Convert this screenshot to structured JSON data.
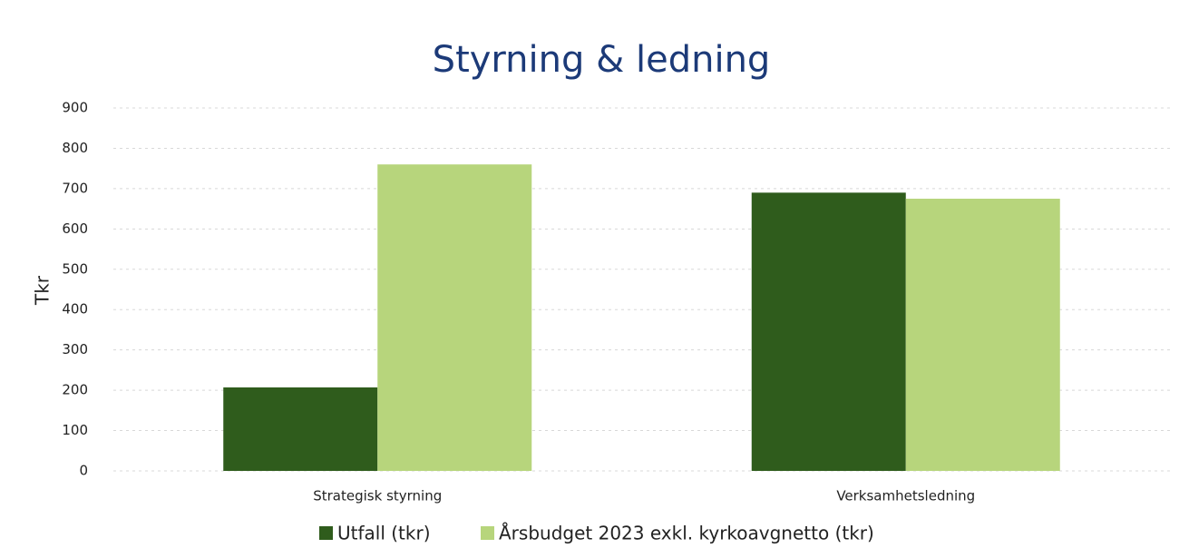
{
  "chart_data": {
    "type": "bar",
    "title": "Styrning & ledning",
    "y_label": "Tkr",
    "categories": [
      "Strategisk styrning",
      "Verksamhetsledning"
    ],
    "series": [
      {
        "name": "Utfall (tkr)",
        "color": "#2f5c1c",
        "values": [
          207,
          690
        ]
      },
      {
        "name": "Årsbudget 2023 exkl. kyrkoavgnetto (tkr)",
        "color": "#b7d57c",
        "values": [
          760,
          675
        ]
      }
    ],
    "ylim": [
      0,
      900
    ],
    "yticks": [
      0,
      100,
      200,
      300,
      400,
      500,
      600,
      700,
      800,
      900
    ],
    "grid": true,
    "legend": "bottom"
  }
}
